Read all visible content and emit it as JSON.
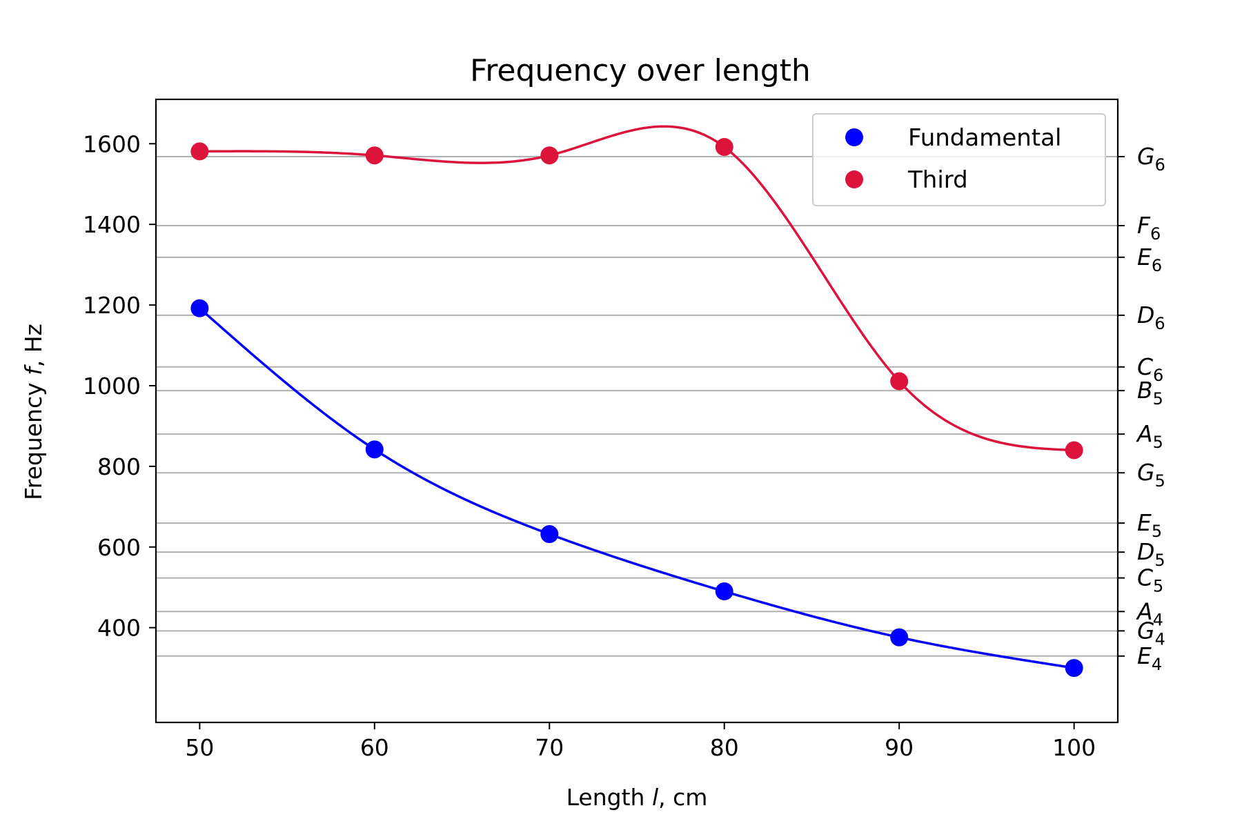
{
  "chart_data": {
    "type": "line",
    "title": "Frequency over length",
    "xlabel": {
      "prefix": "Length ",
      "var": "l",
      "suffix": ", cm"
    },
    "ylabel": {
      "prefix": "Frequency ",
      "var": "f",
      "suffix": ", Hz"
    },
    "x": [
      50,
      60,
      70,
      80,
      90,
      100
    ],
    "xticks": [
      50,
      60,
      70,
      80,
      90,
      100
    ],
    "yticks": [
      400,
      600,
      800,
      1000,
      1200,
      1400,
      1600
    ],
    "xlim": [
      47.5,
      102.5
    ],
    "ylim": [
      165,
      1710
    ],
    "series": [
      {
        "name": "Fundamental",
        "color": "#0000ff",
        "values": [
          1192,
          842,
          632,
          490,
          376,
          300
        ]
      },
      {
        "name": "Third",
        "color": "#dc143c",
        "values": [
          1581,
          1571,
          1571,
          1592,
          1011,
          840
        ]
      }
    ],
    "note_lines": [
      {
        "letter": "E",
        "octave": "4",
        "freq": 329.6
      },
      {
        "letter": "G",
        "octave": "4",
        "freq": 392.0
      },
      {
        "letter": "A",
        "octave": "4",
        "freq": 440.0
      },
      {
        "letter": "C",
        "octave": "5",
        "freq": 523.3
      },
      {
        "letter": "D",
        "octave": "5",
        "freq": 587.3
      },
      {
        "letter": "E",
        "octave": "5",
        "freq": 659.3
      },
      {
        "letter": "G",
        "octave": "5",
        "freq": 784.0
      },
      {
        "letter": "A",
        "octave": "5",
        "freq": 880.0
      },
      {
        "letter": "B",
        "octave": "5",
        "freq": 987.8
      },
      {
        "letter": "C",
        "octave": "6",
        "freq": 1046.5
      },
      {
        "letter": "D",
        "octave": "6",
        "freq": 1174.7
      },
      {
        "letter": "E",
        "octave": "6",
        "freq": 1318.5
      },
      {
        "letter": "F",
        "octave": "6",
        "freq": 1396.9
      },
      {
        "letter": "G",
        "octave": "6",
        "freq": 1568.0
      }
    ],
    "grid": "horizontal at note frequencies",
    "grid_color": "#b0b0b0",
    "legend_position": "upper right"
  }
}
